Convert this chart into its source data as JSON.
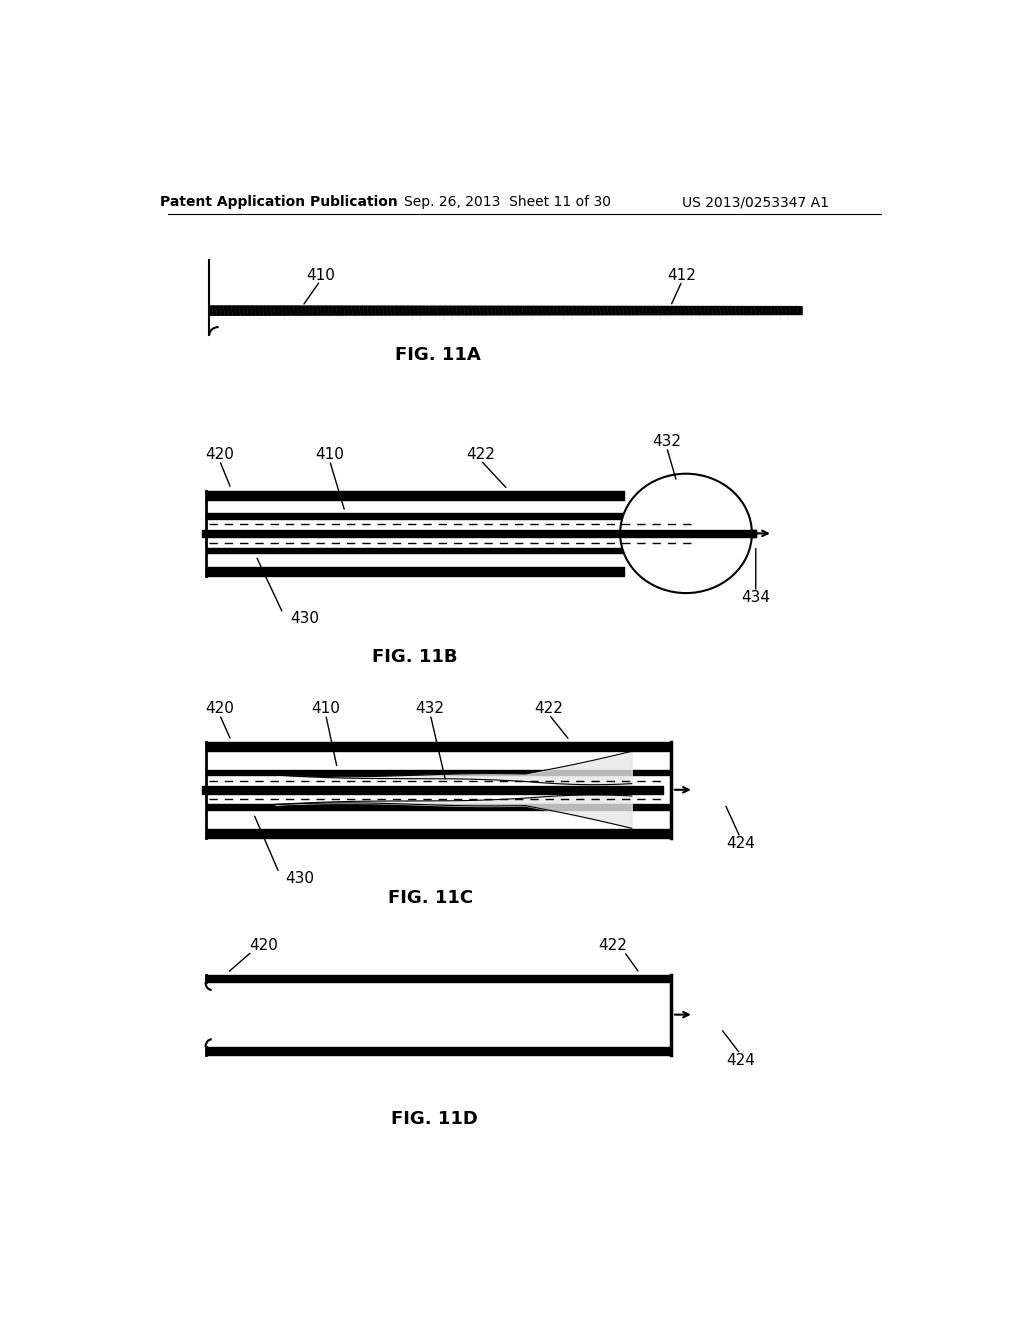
{
  "bg_color": "#ffffff",
  "header_left": "Patent Application Publication",
  "header_mid": "Sep. 26, 2013  Sheet 11 of 30",
  "header_right": "US 2013/0253347 A1",
  "fig11A_label": "FIG. 11A",
  "fig11B_label": "FIG. 11B",
  "fig11C_label": "FIG. 11C",
  "fig11D_label": "FIG. 11D"
}
